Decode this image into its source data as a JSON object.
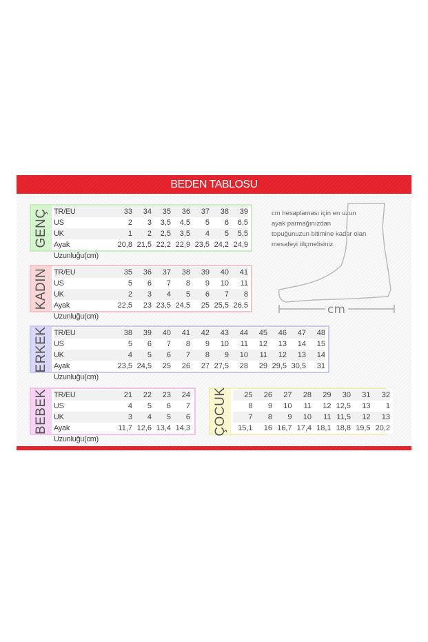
{
  "title": "BEDEN TABLOSU",
  "row_labels": [
    "TR/EU",
    "US",
    "UK",
    "Ayak Uzunluğu(cm)"
  ],
  "tables": [
    {
      "label": "GENÇ",
      "color": "#d6f3d0",
      "border": "#c6ecbf",
      "rows": [
        [
          "33",
          "34",
          "35",
          "36",
          "37",
          "38",
          "39"
        ],
        [
          "2",
          "3",
          "3,5",
          "4,5",
          "5",
          "6",
          "6,5"
        ],
        [
          "1",
          "2",
          "2,5",
          "3,5",
          "4",
          "5",
          "5,5"
        ],
        [
          "20,8",
          "21,5",
          "22,2",
          "22,9",
          "23,5",
          "24,2",
          "24,9"
        ]
      ]
    },
    {
      "label": "KADIN",
      "color": "#f8d6d8",
      "border": "#f2c4c7",
      "rows": [
        [
          "35",
          "36",
          "37",
          "38",
          "39",
          "40",
          "41"
        ],
        [
          "5",
          "6",
          "7",
          "8",
          "9",
          "10",
          "11"
        ],
        [
          "2",
          "3",
          "4",
          "5",
          "6",
          "7",
          "8"
        ],
        [
          "22,5",
          "23",
          "23,5",
          "24,5",
          "25",
          "25,5",
          "26,5"
        ]
      ]
    },
    {
      "label": "ERKEK",
      "color": "#d8d8f6",
      "border": "#c8c8f0",
      "rows": [
        [
          "38",
          "39",
          "40",
          "41",
          "42",
          "43",
          "44",
          "45",
          "46",
          "47",
          "48"
        ],
        [
          "5",
          "6",
          "7",
          "8",
          "9",
          "10",
          "11",
          "12",
          "13",
          "14",
          "15"
        ],
        [
          "4",
          "5",
          "6",
          "7",
          "8",
          "9",
          "10",
          "11",
          "12",
          "13",
          "14"
        ],
        [
          "23,5",
          "24,5",
          "25",
          "26",
          "27",
          "27,5",
          "28",
          "29",
          "29,5",
          "30,5",
          "31"
        ]
      ]
    },
    {
      "label": "BEBEK",
      "color": "#f5d3f2",
      "border": "#efc3ec",
      "rows": [
        [
          "21",
          "22",
          "23",
          "24"
        ],
        [
          "4",
          "5",
          "6",
          "7"
        ],
        [
          "3",
          "4",
          "5",
          "6"
        ],
        [
          "11,7",
          "12,6",
          "13,4",
          "14,3"
        ]
      ]
    },
    {
      "label": "ÇOCUK",
      "color": "#faf7cf",
      "border": "#f3efbc",
      "no_headers": true,
      "rows": [
        [
          "25",
          "26",
          "27",
          "28",
          "29",
          "30",
          "31",
          "32"
        ],
        [
          "8",
          "9",
          "10",
          "11",
          "12",
          "12,5",
          "13",
          "1"
        ],
        [
          "7",
          "8",
          "9",
          "10",
          "11",
          "11,5",
          "12",
          "13"
        ],
        [
          "15,1",
          "16",
          "16,7",
          "17,4",
          "18,1",
          "18,8",
          "19,5",
          "20,2"
        ]
      ]
    }
  ],
  "note": "cm hesaplaması için en uzun ayak parmağınızdan topuğunuzun bitimine kadar olan mesafeyi ölçmelisiniz.",
  "measure_label": "cm"
}
